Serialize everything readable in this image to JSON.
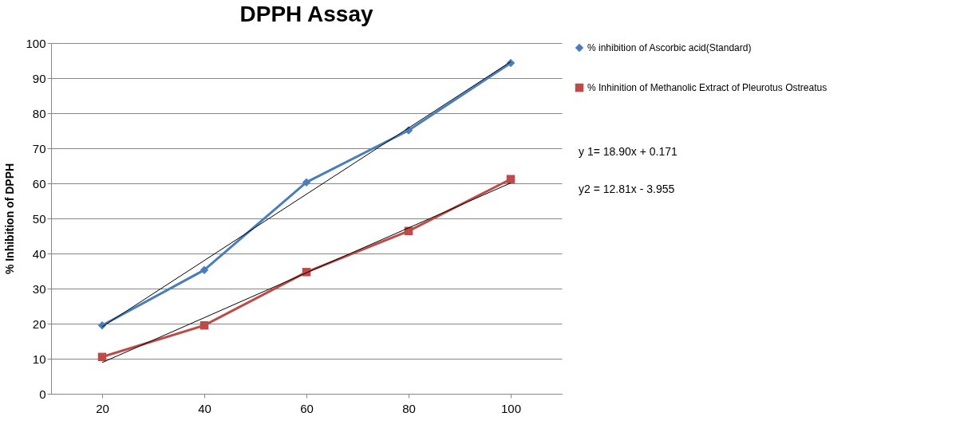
{
  "chart_data": {
    "type": "line",
    "title": "DPPH Assay",
    "ylabel": "% Inhibition of DPPH",
    "categories": [
      "20",
      "40",
      "60",
      "80",
      "100"
    ],
    "series": [
      {
        "name": "% inhibition of Ascorbic acid(Standard)",
        "color": "#4a7ebb",
        "marker": "diamond",
        "values": [
          19.5,
          35.3,
          60.3,
          75.1,
          94.3
        ]
      },
      {
        "name": "% Inhinition of Methanolic Extract of Pleurotus Ostreatus",
        "color": "#be4b48",
        "marker": "square",
        "values": [
          10.5,
          19.5,
          34.7,
          46.4,
          61.2
        ]
      },
      {
        "color": "#000000",
        "marker": "none",
        "values": [
          19.1,
          38.0,
          56.9,
          75.8,
          94.7
        ]
      },
      {
        "color": "#000000",
        "marker": "none",
        "values": [
          8.9,
          21.7,
          34.5,
          47.3,
          60.1
        ]
      }
    ],
    "ylim": [
      0,
      100
    ],
    "yticks": [
      0,
      10,
      20,
      30,
      40,
      50,
      60,
      70,
      80,
      90,
      100
    ],
    "grid": "y",
    "legend": "right",
    "annotations": [
      "y 1= 18.90x + 0.171",
      "y2 = 12.81x - 3.955"
    ]
  }
}
